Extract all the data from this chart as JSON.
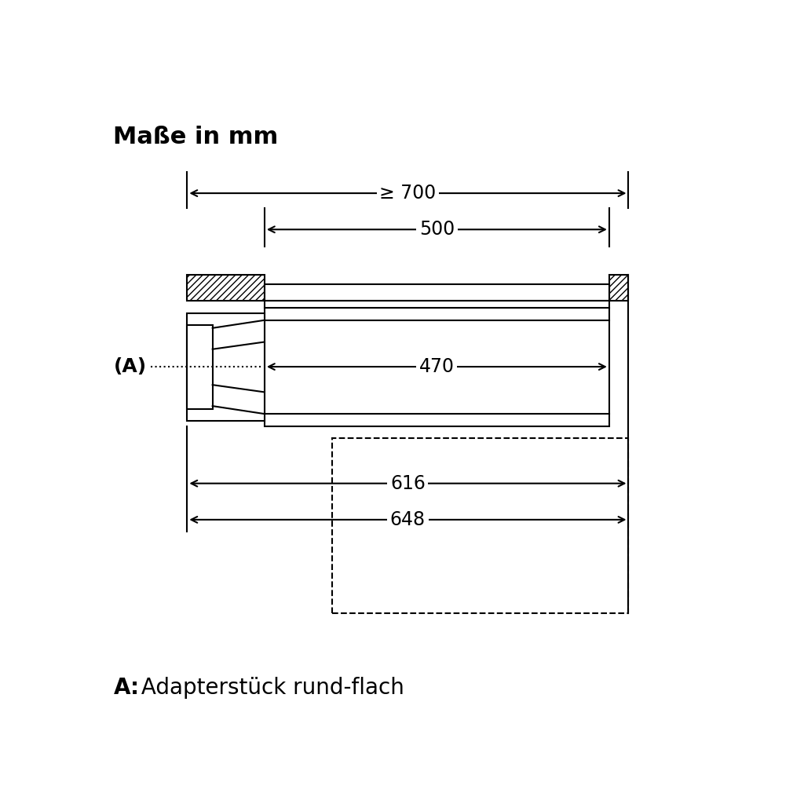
{
  "title": "Maße in mm",
  "footer_bold": "A:",
  "footer_normal": " Adapterstück rund-flach",
  "bg_color": "#ffffff",
  "line_color": "#000000",
  "dim_700": "≥ 700",
  "dim_500": "500",
  "dim_470": "470",
  "dim_616": "616",
  "dim_648": "648",
  "label_A": "(A)"
}
